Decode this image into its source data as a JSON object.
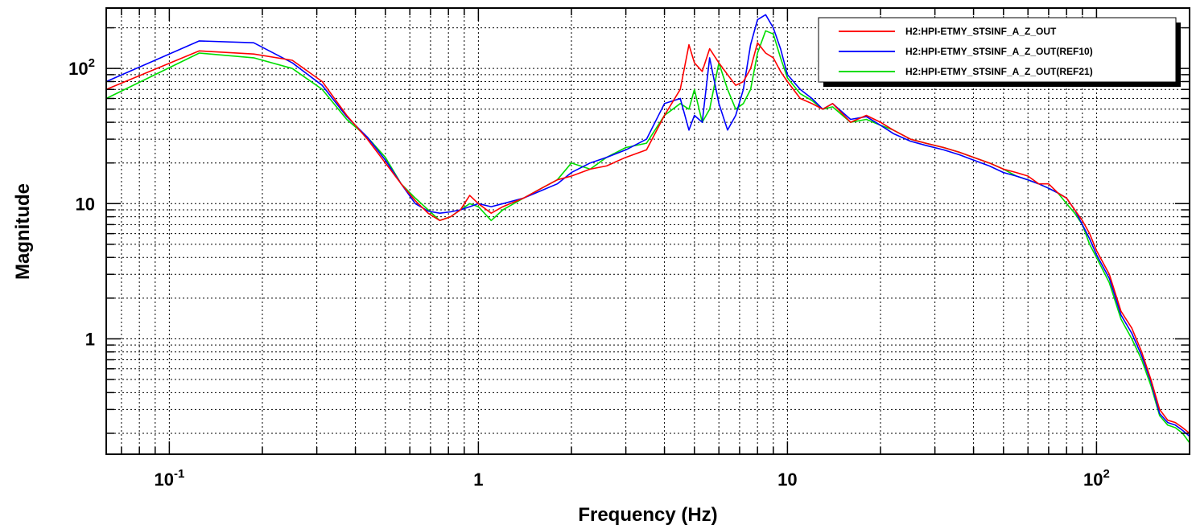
{
  "chart_data": {
    "type": "line",
    "xlabel": "Frequency (Hz)",
    "ylabel": "Magnitude",
    "xscale": "log",
    "yscale": "log",
    "xlim": [
      0.0625,
      200
    ],
    "ylim": [
      0.14,
      280
    ],
    "grid": true,
    "legend_position": "top-right",
    "x_ticks": [
      {
        "value": 0.1,
        "base": "10",
        "exp": "-1"
      },
      {
        "value": 1,
        "base": "1",
        "exp": ""
      },
      {
        "value": 10,
        "base": "10",
        "exp": ""
      },
      {
        "value": 100,
        "base": "10",
        "exp": "2"
      }
    ],
    "y_ticks": [
      {
        "value": 1,
        "base": "1",
        "exp": ""
      },
      {
        "value": 10,
        "base": "10",
        "exp": ""
      },
      {
        "value": 100,
        "base": "10",
        "exp": "2"
      }
    ],
    "series": [
      {
        "name": "H2:HPI-ETMY_STSINF_A_Z_OUT",
        "color": "#ff0000",
        "x": [
          0.0625,
          0.125,
          0.1875,
          0.25,
          0.3125,
          0.375,
          0.4375,
          0.5,
          0.5625,
          0.625,
          0.6875,
          0.75,
          0.8125,
          0.875,
          0.9375,
          1.0,
          1.1,
          1.2,
          1.4,
          1.6,
          1.8,
          2.0,
          2.3,
          2.6,
          3.0,
          3.5,
          4.0,
          4.5,
          4.8,
          5.0,
          5.3,
          5.6,
          6.0,
          6.4,
          6.8,
          7.2,
          7.6,
          8.0,
          8.5,
          9.0,
          9.5,
          10,
          11,
          12,
          13,
          14,
          16,
          18,
          20,
          22,
          25,
          28,
          32,
          36,
          40,
          45,
          50,
          55,
          60,
          65,
          70,
          75,
          80,
          85,
          90,
          95,
          100,
          110,
          120,
          130,
          140,
          150,
          160,
          170,
          180,
          190,
          200
        ],
        "values": [
          70,
          135,
          128,
          115,
          80,
          45,
          30,
          20,
          14,
          10.5,
          8.5,
          7.5,
          8,
          9,
          11.5,
          10,
          8.5,
          9.5,
          11,
          13,
          15,
          16,
          18,
          19,
          22,
          25,
          45,
          70,
          150,
          110,
          95,
          140,
          110,
          90,
          75,
          80,
          100,
          155,
          130,
          120,
          95,
          80,
          60,
          55,
          50,
          55,
          40,
          45,
          40,
          35,
          30,
          28,
          26,
          24,
          22,
          20,
          18,
          17,
          16,
          14,
          14,
          12,
          11,
          9,
          7.5,
          6,
          4.5,
          3,
          1.6,
          1.2,
          0.8,
          0.5,
          0.3,
          0.25,
          0.24,
          0.22,
          0.2
        ]
      },
      {
        "name": "H2:HPI-ETMY_STSINF_A_Z_OUT(REF10)",
        "color": "#0000ff",
        "x": [
          0.0625,
          0.125,
          0.1875,
          0.25,
          0.3125,
          0.375,
          0.4375,
          0.5,
          0.5625,
          0.625,
          0.6875,
          0.75,
          0.8125,
          0.875,
          0.9375,
          1.0,
          1.1,
          1.2,
          1.4,
          1.6,
          1.8,
          2.0,
          2.3,
          2.6,
          3.0,
          3.5,
          4.0,
          4.5,
          4.8,
          5.0,
          5.3,
          5.6,
          6.0,
          6.4,
          6.8,
          7.2,
          7.6,
          8.0,
          8.5,
          9.0,
          9.5,
          10,
          11,
          12,
          13,
          14,
          16,
          18,
          20,
          22,
          25,
          28,
          32,
          36,
          40,
          45,
          50,
          55,
          60,
          65,
          70,
          75,
          80,
          85,
          90,
          95,
          100,
          110,
          120,
          130,
          140,
          150,
          160,
          170,
          180,
          190,
          200
        ],
        "values": [
          80,
          160,
          155,
          110,
          75,
          44,
          31,
          21,
          14,
          10,
          8.8,
          8.5,
          8.7,
          9,
          9.5,
          10,
          9.5,
          10,
          11,
          12.5,
          14,
          17,
          20,
          22,
          25,
          30,
          55,
          60,
          35,
          45,
          40,
          120,
          55,
          35,
          45,
          70,
          150,
          230,
          250,
          200,
          140,
          90,
          70,
          60,
          50,
          55,
          42,
          44,
          38,
          33,
          29,
          27,
          25,
          23,
          21,
          19,
          17,
          16,
          15,
          14,
          13,
          12,
          11,
          9,
          7,
          5.5,
          4.2,
          2.8,
          1.5,
          1.1,
          0.75,
          0.48,
          0.28,
          0.24,
          0.23,
          0.21,
          0.19
        ]
      },
      {
        "name": "H2:HPI-ETMY_STSINF_A_Z_OUT(REF21)",
        "color": "#00dd00",
        "x": [
          0.0625,
          0.125,
          0.1875,
          0.25,
          0.3125,
          0.375,
          0.4375,
          0.5,
          0.5625,
          0.625,
          0.6875,
          0.75,
          0.8125,
          0.875,
          0.9375,
          1.0,
          1.1,
          1.2,
          1.4,
          1.6,
          1.8,
          2.0,
          2.3,
          2.6,
          3.0,
          3.5,
          4.0,
          4.5,
          4.8,
          5.0,
          5.3,
          5.6,
          6.0,
          6.4,
          6.8,
          7.2,
          7.6,
          8.0,
          8.5,
          9.0,
          9.5,
          10,
          11,
          12,
          13,
          14,
          16,
          18,
          20,
          22,
          25,
          28,
          32,
          36,
          40,
          45,
          50,
          55,
          60,
          65,
          70,
          75,
          80,
          85,
          90,
          95,
          100,
          110,
          120,
          130,
          140,
          150,
          160,
          170,
          180,
          190,
          200
        ],
        "values": [
          60,
          130,
          120,
          100,
          70,
          42,
          31,
          22,
          14,
          11,
          9,
          7.5,
          8,
          9,
          10,
          9.5,
          7.5,
          9,
          11,
          13,
          15,
          20,
          18,
          22,
          26,
          28,
          45,
          55,
          50,
          70,
          40,
          50,
          110,
          70,
          50,
          55,
          70,
          130,
          190,
          180,
          120,
          85,
          65,
          58,
          50,
          52,
          40,
          42,
          38,
          35,
          30,
          28,
          26,
          24,
          22,
          20,
          18,
          16,
          15,
          14,
          13,
          12,
          10,
          8.5,
          7,
          5,
          4,
          2.6,
          1.4,
          1.0,
          0.7,
          0.45,
          0.27,
          0.23,
          0.22,
          0.2,
          0.17
        ]
      }
    ]
  }
}
